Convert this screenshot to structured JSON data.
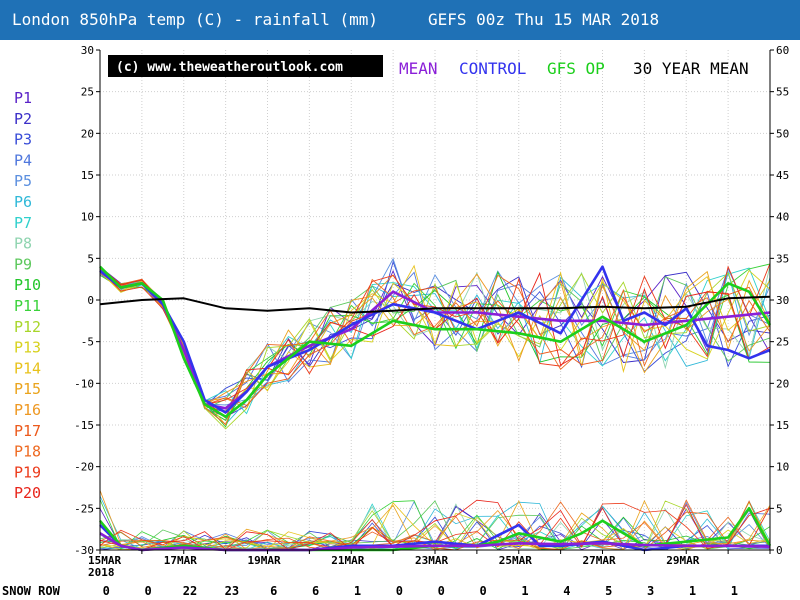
{
  "header": {
    "title": "London 850hPa temp (C) - rainfall (mm)",
    "run": "GEFS 00z Thu 15 MAR 2018"
  },
  "banner": {
    "credit": "(c) www.theweatheroutlook.com"
  },
  "legend": {
    "mean": "MEAN",
    "control": "CONTROL",
    "op": "GFS OP",
    "climo": "30 YEAR MEAN",
    "mean_color": "#8a1fd8",
    "control_color": "#3333ee",
    "op_color": "#1ccf1c",
    "climo_color": "#000000",
    "placement": "top-right"
  },
  "members": [
    {
      "name": "P1",
      "color": "#5a22c8"
    },
    {
      "name": "P2",
      "color": "#3a2ec8"
    },
    {
      "name": "P3",
      "color": "#3a4ed8"
    },
    {
      "name": "P4",
      "color": "#4f77dd"
    },
    {
      "name": "P5",
      "color": "#5b8fdf"
    },
    {
      "name": "P6",
      "color": "#2fb8d8"
    },
    {
      "name": "P7",
      "color": "#2fd0cc"
    },
    {
      "name": "P8",
      "color": "#8fd4b0"
    },
    {
      "name": "P9",
      "color": "#5cc85c"
    },
    {
      "name": "P10",
      "color": "#22c62a"
    },
    {
      "name": "P11",
      "color": "#3ad23a"
    },
    {
      "name": "P12",
      "color": "#a8d62a"
    },
    {
      "name": "P13",
      "color": "#d8d21e"
    },
    {
      "name": "P14",
      "color": "#e8c21c"
    },
    {
      "name": "P15",
      "color": "#eaa41c"
    },
    {
      "name": "P16",
      "color": "#ee9822"
    },
    {
      "name": "P17",
      "color": "#ec5a1c"
    },
    {
      "name": "P18",
      "color": "#ee6a22"
    },
    {
      "name": "P19",
      "color": "#ec3a1a"
    },
    {
      "name": "P20",
      "color": "#e8241a"
    }
  ],
  "snow_row": {
    "label": "SNOW ROW",
    "values": [
      "0",
      "0",
      "22",
      "23",
      "6",
      "6",
      "1",
      "0",
      "0",
      "0",
      "1",
      "4",
      "5",
      "3",
      "1",
      "1"
    ]
  },
  "chart_data": {
    "type": "line",
    "title": "London 850hPa temp (C) - rainfall (mm)",
    "x_days": 16,
    "y_left_range": [
      -30,
      30
    ],
    "y_left_ticks": [
      30,
      25,
      20,
      15,
      10,
      5,
      0,
      -5,
      -10,
      -15,
      -20,
      -25,
      -30
    ],
    "y_right_range": [
      0,
      60
    ],
    "y_right_ticks": [
      60,
      55,
      50,
      45,
      40,
      35,
      30,
      25,
      20,
      15,
      10,
      5,
      0
    ],
    "x_tick_labels": [
      "15MAR",
      "17MAR",
      "19MAR",
      "21MAR",
      "23MAR",
      "25MAR",
      "27MAR",
      "29MAR"
    ],
    "x_year_label": "2018",
    "grid": true,
    "series": [
      {
        "name": "MEAN",
        "unit": "C",
        "x": [
          0,
          0.5,
          1,
          1.5,
          2,
          2.5,
          3,
          3.5,
          4,
          5,
          6,
          7,
          8,
          9,
          10,
          11,
          12,
          13,
          14,
          15,
          16
        ],
        "values": [
          3.5,
          1.5,
          2,
          -0.5,
          -6,
          -12.5,
          -13,
          -11,
          -8,
          -5.5,
          -3.5,
          1,
          -1.5,
          -1.5,
          -2,
          -2.5,
          -2.5,
          -3,
          -2.5,
          -2,
          -1.5
        ]
      },
      {
        "name": "CONTROL",
        "unit": "C",
        "x": [
          0,
          0.5,
          1,
          1.5,
          2,
          2.5,
          3,
          3.5,
          4,
          5,
          6,
          7,
          8,
          9,
          10,
          11,
          12,
          12.5,
          13,
          13.5,
          14,
          14.5,
          15,
          15.5,
          16
        ],
        "values": [
          3.5,
          1.5,
          2,
          -0.5,
          -5,
          -12,
          -13.5,
          -11,
          -8,
          -6,
          -3,
          -0.5,
          -1.5,
          -3.5,
          -1.5,
          -4,
          4,
          -2.5,
          -1.5,
          -3,
          -1,
          -5.5,
          -6,
          -7,
          -6
        ]
      },
      {
        "name": "GFS OP",
        "unit": "C",
        "x": [
          0,
          0.5,
          1,
          1.5,
          2,
          2.5,
          3,
          3.5,
          4,
          5,
          6,
          7,
          8,
          9,
          10,
          11,
          12,
          13,
          14,
          15,
          15.5,
          16
        ],
        "values": [
          4,
          1.5,
          2,
          0,
          -7,
          -12.5,
          -14,
          -12,
          -9,
          -5,
          -5.5,
          -2.5,
          -3.5,
          -3.5,
          -4,
          -5,
          -2,
          -5,
          -3,
          2,
          1,
          -3
        ]
      },
      {
        "name": "30 YEAR MEAN",
        "unit": "C",
        "x": [
          0,
          1,
          2,
          3,
          4,
          5,
          6,
          7,
          8,
          9,
          10,
          11,
          12,
          13,
          14,
          15,
          16
        ],
        "values": [
          -0.5,
          0,
          0.2,
          -1,
          -1.3,
          -1,
          -1.5,
          -1.3,
          -1,
          -1,
          -1,
          -1,
          -0.8,
          -1,
          -0.8,
          0.2,
          0.4
        ]
      },
      {
        "name": "CONTROL rainfall",
        "unit": "mm",
        "x": [
          0,
          0.2,
          0.5,
          1,
          2,
          3,
          4,
          5,
          6,
          7,
          8,
          9,
          10,
          10.5,
          11,
          12,
          13,
          14,
          15,
          16
        ],
        "values": [
          3,
          2,
          0.5,
          0,
          0.5,
          0,
          0,
          0,
          0.5,
          0.5,
          1,
          0.5,
          3,
          0.5,
          0.5,
          1,
          0,
          0.5,
          0.5,
          0.5
        ]
      },
      {
        "name": "GFS OP rainfall",
        "unit": "mm",
        "x": [
          0,
          0.5,
          1,
          2,
          3,
          4,
          5,
          6,
          7,
          8,
          9,
          9.5,
          10,
          11,
          11.5,
          12,
          13,
          14,
          15,
          15.5,
          16
        ],
        "values": [
          3.5,
          0.5,
          0,
          0.5,
          0,
          0,
          0,
          0,
          0,
          0.5,
          0.5,
          1,
          2,
          1,
          2,
          3.5,
          0.5,
          1,
          1.5,
          5,
          0.5
        ]
      },
      {
        "name": "MEAN rainfall",
        "unit": "mm",
        "x": [
          0,
          0.5,
          1,
          2,
          3,
          4,
          5,
          6,
          7,
          8,
          9,
          10,
          11,
          12,
          13,
          14,
          15,
          16
        ],
        "values": [
          2,
          0.5,
          0,
          0.3,
          0,
          0,
          0,
          0.3,
          0.4,
          0.5,
          0.5,
          0.8,
          0.7,
          0.8,
          0.6,
          0.5,
          0.5,
          0.4
        ]
      }
    ]
  }
}
